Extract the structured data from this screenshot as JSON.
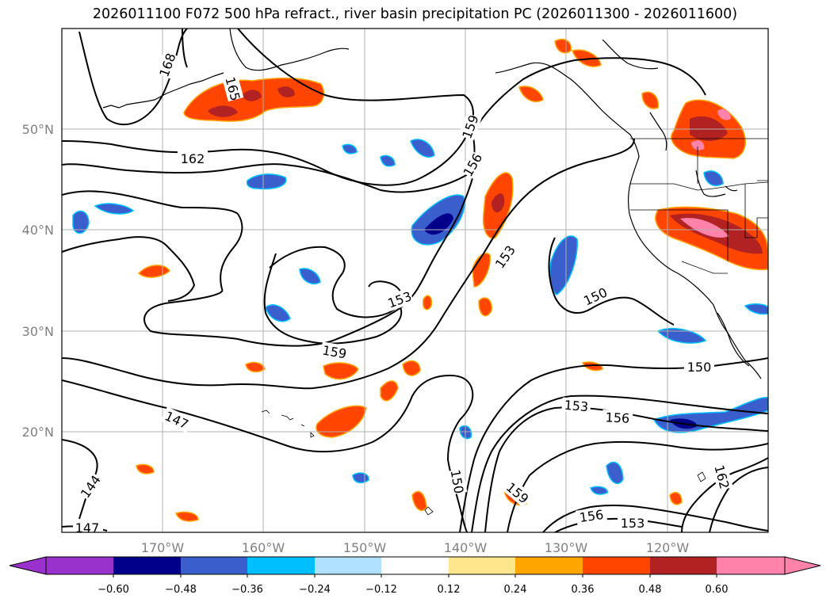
{
  "title": "2026011100 F072 500 hPa refract., river basin precipitation PC (2026011300 - 2026011600)",
  "map": {
    "lat_labels": [
      "50°N",
      "40°N",
      "30°N",
      "20°N"
    ],
    "lon_labels": [
      "170°W",
      "160°W",
      "150°W",
      "140°W",
      "130°W",
      "120°W"
    ],
    "contour_labels": [
      "168",
      "165",
      "162",
      "159",
      "156",
      "153",
      "153",
      "150",
      "159",
      "147",
      "144",
      "147",
      "150",
      "153",
      "156",
      "150",
      "159",
      "156",
      "153",
      "162"
    ],
    "contour_interval": 3,
    "colors": {
      "contour": "#000000",
      "grid": "#b0b0b0",
      "coast": "#000000"
    }
  },
  "colorbar": {
    "ticks": [
      "−0.60",
      "−0.48",
      "−0.36",
      "−0.24",
      "−0.12",
      "0.12",
      "0.24",
      "0.36",
      "0.48",
      "0.60"
    ],
    "colors": [
      "#9932cc",
      "#00008b",
      "#3a5fcd",
      "#00bfff",
      "#b0e2ff",
      "#ffffff",
      "#ffe68c",
      "#ffa500",
      "#ff4500",
      "#b22222",
      "#ff82ab"
    ],
    "extend": "both"
  }
}
